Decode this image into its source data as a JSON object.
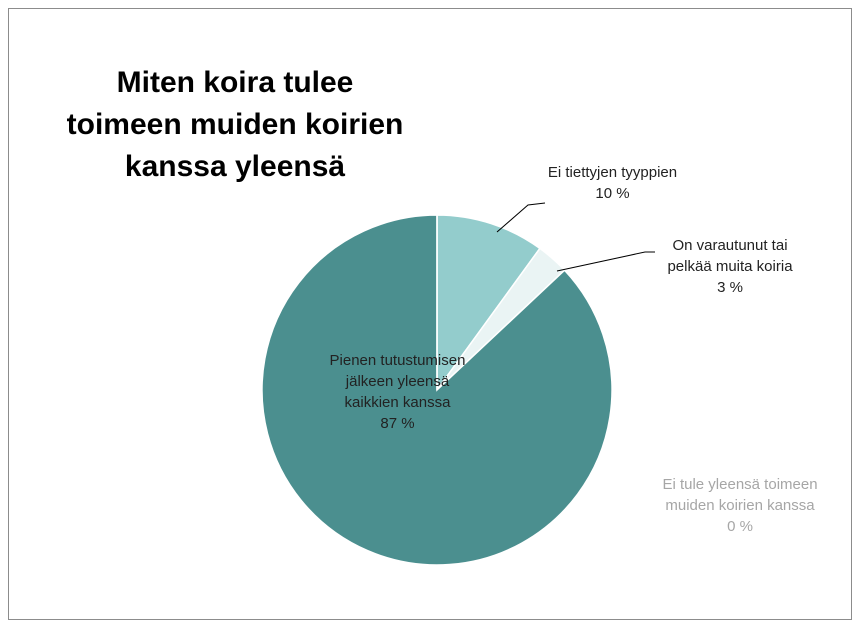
{
  "chart_data": {
    "type": "pie",
    "title": "Miten koira tulee toimeen muiden koirien kanssa yleensä",
    "categories": [
      "Ei tiettyjen tyyppien",
      "On varautunut tai pelkää muita koiria",
      "Pienen tutustumisen jälkeen yleensä kaikkien kanssa",
      "Ei tule yleensä toimeen muiden koirien kanssa"
    ],
    "values": [
      10,
      3,
      87,
      0
    ],
    "value_labels": [
      "10 %",
      "3 %",
      "87 %",
      "0 %"
    ],
    "colors": [
      "#93cccc",
      "#eaf4f4",
      "#4b8f8f",
      "#c8d8d8"
    ]
  }
}
